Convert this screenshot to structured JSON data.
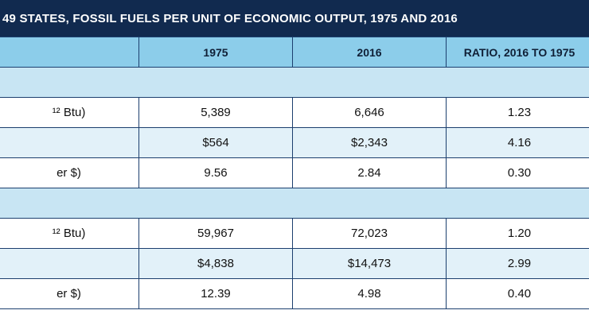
{
  "title": "49 STATES, FOSSIL FUELS PER UNIT OF ECONOMIC OUTPUT, 1975 AND 2016",
  "header": {
    "label": "",
    "col_1975": "1975",
    "col_2016": "2016",
    "col_ratio": "RATIO, 2016 TO 1975"
  },
  "groups": [
    {
      "section_label": "",
      "rows": [
        {
          "label": "¹² Btu)",
          "v1975": "5,389",
          "v2016": "6,646",
          "ratio": "1.23"
        },
        {
          "label": "",
          "v1975": "$564",
          "v2016": "$2,343",
          "ratio": "4.16"
        },
        {
          "label": "er $)",
          "v1975": "9.56",
          "v2016": "2.84",
          "ratio": "0.30"
        }
      ]
    },
    {
      "section_label": "",
      "rows": [
        {
          "label": "¹² Btu)",
          "v1975": "59,967",
          "v2016": "72,023",
          "ratio": "1.20"
        },
        {
          "label": "",
          "v1975": "$4,838",
          "v2016": "$14,473",
          "ratio": "2.99"
        },
        {
          "label": "er $)",
          "v1975": "12.39",
          "v2016": "4.98",
          "ratio": "0.40"
        }
      ]
    }
  ],
  "colors": {
    "title_bg": "#112a4f",
    "header_bg": "#8ccdea",
    "section_bg": "#c8e5f3",
    "shade_bg": "#e2f1f9",
    "border": "#1c3f6e"
  }
}
